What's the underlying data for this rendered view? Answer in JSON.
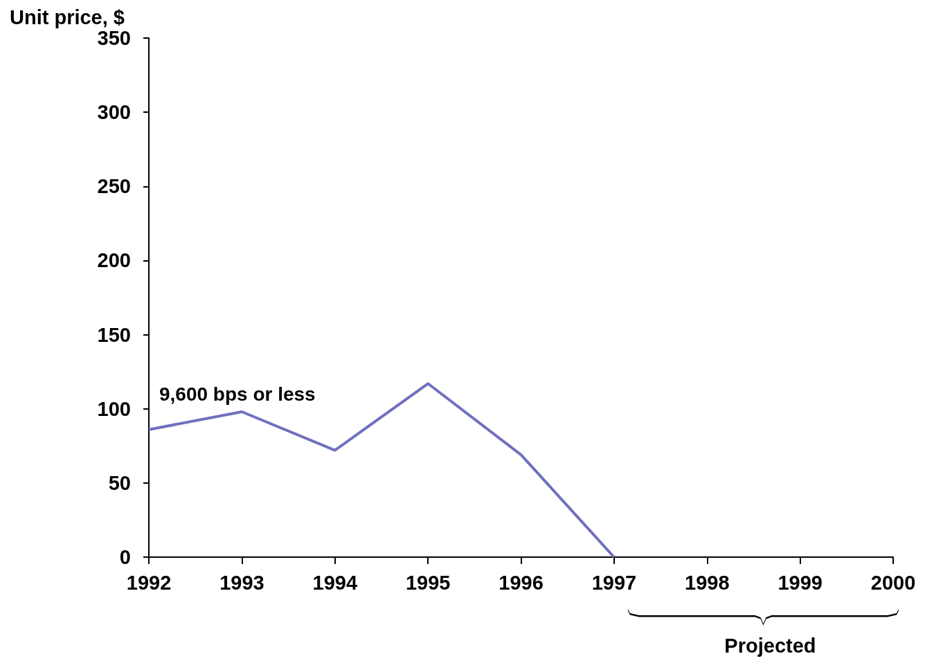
{
  "chart_data": {
    "type": "line",
    "ylabel": "Unit price, $",
    "x": [
      1992,
      1993,
      1994,
      1995,
      1996,
      1997
    ],
    "series": [
      {
        "name": "9,600 bps or less",
        "color": "#7070c0",
        "values": [
          86,
          98,
          72,
          117,
          69,
          0
        ]
      }
    ],
    "xlim": [
      1992,
      2000
    ],
    "xticks": [
      1992,
      1993,
      1994,
      1995,
      1996,
      1997,
      1998,
      1999,
      2000
    ],
    "ylim": [
      0,
      350
    ],
    "yticks": [
      0,
      50,
      100,
      150,
      200,
      250,
      300,
      350
    ],
    "grid": false,
    "legend": false,
    "marker": "none",
    "line_style": "solid",
    "annotations": [
      "Projected"
    ]
  }
}
